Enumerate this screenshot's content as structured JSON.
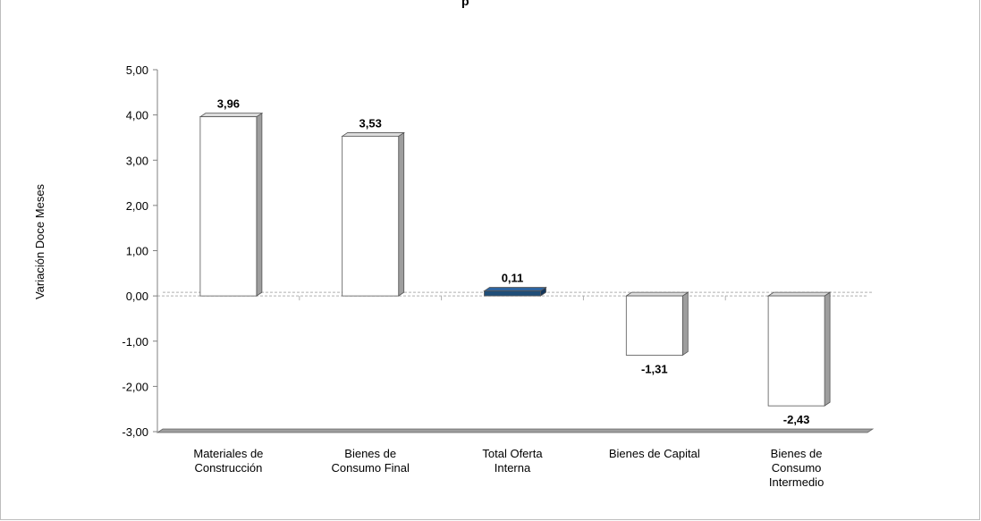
{
  "chart_data": {
    "type": "bar",
    "title": "",
    "title_fragment": "p",
    "ylabel": "Variación Doce Meses",
    "xlabel": "",
    "ylim": [
      -3.0,
      5.0
    ],
    "ytick_step": 1.0,
    "categories": [
      [
        "Materiales de",
        "Construcción"
      ],
      [
        "Bienes de",
        "Consumo Final"
      ],
      [
        "Total Oferta",
        "Interna"
      ],
      [
        "Bienes de Capital"
      ],
      [
        "Bienes de",
        "Consumo",
        "Intermedio"
      ]
    ],
    "values": [
      3.96,
      3.53,
      0.11,
      -1.31,
      -2.43
    ],
    "data_labels": [
      "3,96",
      "3,53",
      "0,11",
      "-1,31",
      "-2,43"
    ],
    "ytick_labels": [
      "5,00",
      "4,00",
      "3,00",
      "2,00",
      "1,00",
      "0,00",
      "-1,00",
      "-2,00",
      "-3,00"
    ],
    "colors": {
      "bar_fill": "#ffffff",
      "bar_highlight_fill": "#1f4e79",
      "bar_stroke": "#555555",
      "bar_side": "#9e9e9e",
      "floor": "#9e9e9e",
      "reference_line": "#b0b0b0"
    },
    "highlight_index": 2,
    "grid": false,
    "legend": "none"
  }
}
